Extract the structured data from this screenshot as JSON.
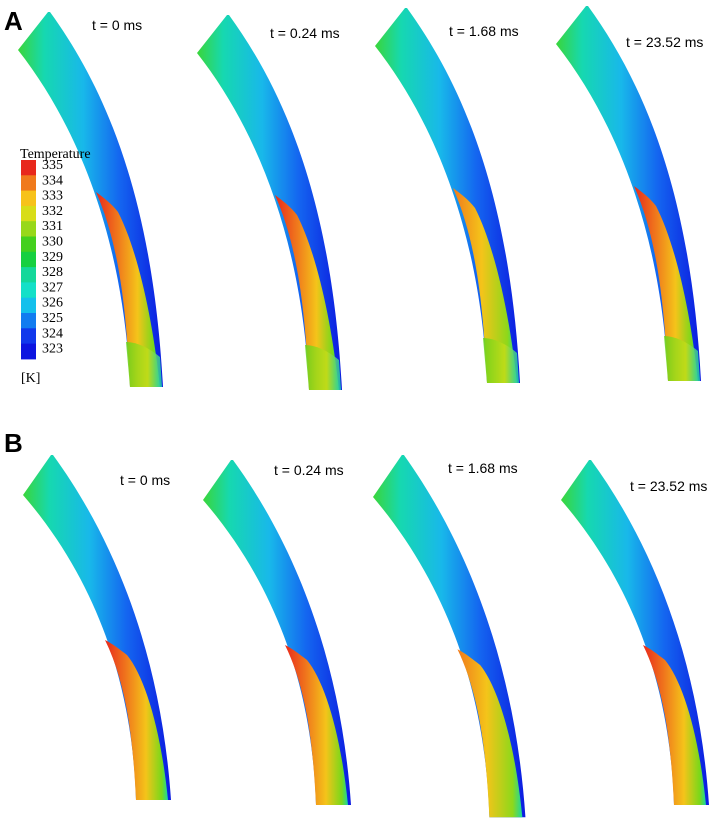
{
  "panels": [
    {
      "letter": "A",
      "times": [
        "t = 0 ms",
        "t = 0.24 ms",
        "t = 1.68 ms",
        "t = 23.52 ms"
      ]
    },
    {
      "letter": "B",
      "times": [
        "t = 0 ms",
        "t = 0.24 ms",
        "t = 1.68 ms",
        "t = 23.52 ms"
      ]
    }
  ],
  "legend": {
    "title": "Temperature",
    "unit": "[K]",
    "levels": [
      {
        "value": "335",
        "color": "#e8281c"
      },
      {
        "value": "334",
        "color": "#f07a1c"
      },
      {
        "value": "333",
        "color": "#f7c21a"
      },
      {
        "value": "332",
        "color": "#d8dd18"
      },
      {
        "value": "331",
        "color": "#98d81a"
      },
      {
        "value": "330",
        "color": "#44d01e"
      },
      {
        "value": "329",
        "color": "#16d040"
      },
      {
        "value": "328",
        "color": "#14d89a"
      },
      {
        "value": "327",
        "color": "#14e0c8"
      },
      {
        "value": "326",
        "color": "#14c0ec"
      },
      {
        "value": "325",
        "color": "#127cf0"
      },
      {
        "value": "324",
        "color": "#1038ec"
      },
      {
        "value": "323",
        "color": "#0c14e0"
      }
    ]
  }
}
